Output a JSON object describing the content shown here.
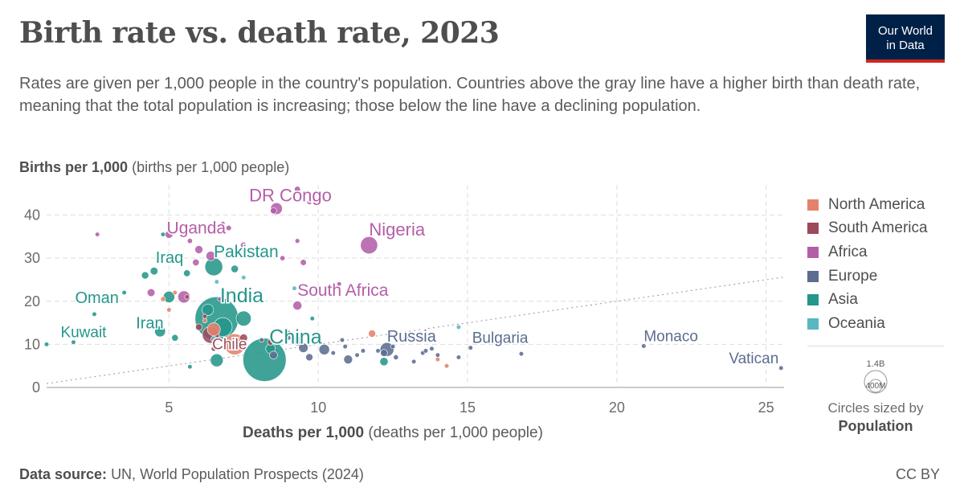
{
  "header": {
    "title": "Birth rate vs. death rate, 2023",
    "subtitle": "Rates are given per 1,000 people in the country's population. Countries above the gray line have a higher birth than death rate, meaning that the total population is increasing; those below the line have a declining population.",
    "logo_line1": "Our World",
    "logo_line2": "in Data"
  },
  "axes": {
    "y_label_bold": "Births per 1,000",
    "y_label_rest": "(births per 1,000 people)",
    "x_label_bold": "Deaths per 1,000",
    "x_label_rest": "(deaths per 1,000 people)"
  },
  "legend": {
    "items": [
      {
        "name": "North America",
        "color": "#e5826d"
      },
      {
        "name": "South America",
        "color": "#9b4b5b"
      },
      {
        "name": "Africa",
        "color": "#b45ea8"
      },
      {
        "name": "Europe",
        "color": "#5c6d8f"
      },
      {
        "name": "Asia",
        "color": "#25968a"
      },
      {
        "name": "Oceania",
        "color": "#58b7c1"
      }
    ],
    "size_big": "1.4B",
    "size_small": "400M",
    "size_caption": "Circles sized by",
    "size_caption_bold": "Population"
  },
  "footer": {
    "source_bold": "Data source:",
    "source_rest": "UN, World Population Prospects (2024)",
    "license": "CC BY"
  },
  "chart_data": {
    "type": "scatter",
    "xlim": [
      0.9,
      25.6
    ],
    "ylim": [
      0,
      47
    ],
    "x_ticks": [
      5,
      10,
      15,
      20,
      25
    ],
    "y_ticks": [
      0,
      10,
      20,
      30,
      40
    ],
    "grid": true,
    "legend_position": "right",
    "reference_line": "births = deaths",
    "size_scale": {
      "big": 1400,
      "small": 400,
      "unit": "million"
    },
    "points": [
      {
        "label": "DR Congo",
        "region": "Africa",
        "x": 8.6,
        "y": 41.5,
        "pop": 105
      },
      {
        "label": "Nigeria",
        "region": "Africa",
        "x": 11.7,
        "y": 33.0,
        "pop": 224
      },
      {
        "label": "Uganda",
        "region": "Africa",
        "x": 6.0,
        "y": 32.0,
        "pop": 49
      },
      {
        "label": "South Africa",
        "region": "Africa",
        "x": 9.3,
        "y": 19.0,
        "pop": 61
      },
      {
        "label": "Pakistan",
        "region": "Asia",
        "x": 6.5,
        "y": 28.0,
        "pop": 240
      },
      {
        "label": "Iraq",
        "region": "Asia",
        "x": 4.5,
        "y": 27.0,
        "pop": 45
      },
      {
        "label": "India",
        "region": "Asia",
        "x": 6.6,
        "y": 16.0,
        "pop": 1430
      },
      {
        "label": "China",
        "region": "Asia",
        "x": 8.2,
        "y": 6.4,
        "pop": 1410
      },
      {
        "label": "Oman",
        "region": "Asia",
        "x": 2.5,
        "y": 17.0,
        "pop": 5
      },
      {
        "label": "Iran",
        "region": "Asia",
        "x": 4.7,
        "y": 13.0,
        "pop": 89
      },
      {
        "label": "Kuwait",
        "region": "Asia",
        "x": 1.8,
        "y": 10.5,
        "pop": 4
      },
      {
        "label": "Chile",
        "region": "South America",
        "x": 6.5,
        "y": 9.0,
        "pop": 20
      },
      {
        "label": "Russia",
        "region": "Europe",
        "x": 12.3,
        "y": 8.8,
        "pop": 144
      },
      {
        "label": "Bulgaria",
        "region": "Europe",
        "x": 15.1,
        "y": 9.2,
        "pop": 6.7
      },
      {
        "label": "Monaco",
        "region": "Europe",
        "x": 20.9,
        "y": 9.6,
        "pop": 0.04
      },
      {
        "label": "Vatican",
        "region": "Europe",
        "x": 25.5,
        "y": 4.5,
        "pop": 0.001
      },
      {
        "region": "Asia",
        "x": 0.9,
        "y": 10.0,
        "pop": 5
      },
      {
        "region": "Asia",
        "x": 7.5,
        "y": 16.0,
        "pop": 170
      },
      {
        "region": "Asia",
        "x": 5.0,
        "y": 21.0,
        "pop": 100
      },
      {
        "region": "Asia",
        "x": 6.8,
        "y": 14.0,
        "pop": 270
      },
      {
        "region": "Asia",
        "x": 4.8,
        "y": 35.5,
        "pop": 10
      },
      {
        "region": "Asia",
        "x": 12.2,
        "y": 6.0,
        "pop": 52
      },
      {
        "region": "Asia",
        "x": 4.2,
        "y": 26.0,
        "pop": 40
      },
      {
        "region": "Asia",
        "x": 5.6,
        "y": 26.5,
        "pop": 34
      },
      {
        "region": "Asia",
        "x": 6.3,
        "y": 18.0,
        "pop": 99
      },
      {
        "region": "Asia",
        "x": 7.2,
        "y": 27.5,
        "pop": 42
      },
      {
        "region": "Asia",
        "x": 5.2,
        "y": 11.5,
        "pop": 33
      },
      {
        "region": "Asia",
        "x": 8.4,
        "y": 9.0,
        "pop": 70
      },
      {
        "region": "Asia",
        "x": 9.0,
        "y": 12.5,
        "pop": 30
      },
      {
        "region": "Asia",
        "x": 9.8,
        "y": 16.0,
        "pop": 5
      },
      {
        "region": "Asia",
        "x": 3.5,
        "y": 22.0,
        "pop": 3
      },
      {
        "region": "Asia",
        "x": 5.7,
        "y": 4.8,
        "pop": 9
      },
      {
        "region": "Asia",
        "x": 6.6,
        "y": 6.3,
        "pop": 125
      },
      {
        "region": "Oceania",
        "x": 6.6,
        "y": 24.5,
        "pop": 10
      },
      {
        "region": "Oceania",
        "x": 14.7,
        "y": 14.0,
        "pop": 0.3
      },
      {
        "region": "Oceania",
        "x": 6.5,
        "y": 11.2,
        "pop": 26
      },
      {
        "region": "Oceania",
        "x": 9.2,
        "y": 23.0,
        "pop": 1
      },
      {
        "region": "Oceania",
        "x": 7.5,
        "y": 25.5,
        "pop": 1
      },
      {
        "region": "North America",
        "x": 7.2,
        "y": 10.0,
        "pop": 335
      },
      {
        "region": "North America",
        "x": 6.5,
        "y": 13.5,
        "pop": 128
      },
      {
        "region": "North America",
        "x": 4.8,
        "y": 20.5,
        "pop": 18
      },
      {
        "region": "North America",
        "x": 5.0,
        "y": 18.0,
        "pop": 12
      },
      {
        "region": "North America",
        "x": 6.2,
        "y": 15.5,
        "pop": 7
      },
      {
        "region": "North America",
        "x": 11.8,
        "y": 12.5,
        "pop": 40
      },
      {
        "region": "North America",
        "x": 13.4,
        "y": 11.0,
        "pop": 11
      },
      {
        "region": "North America",
        "x": 14.0,
        "y": 6.5,
        "pop": 3
      },
      {
        "region": "North America",
        "x": 14.3,
        "y": 5.0,
        "pop": 3
      },
      {
        "region": "North America",
        "x": 5.2,
        "y": 22.0,
        "pop": 10
      },
      {
        "region": "South America",
        "x": 6.4,
        "y": 12.2,
        "pop": 216
      },
      {
        "region": "South America",
        "x": 6.0,
        "y": 14.0,
        "pop": 34
      },
      {
        "region": "South America",
        "x": 5.6,
        "y": 21.0,
        "pop": 12
      },
      {
        "region": "South America",
        "x": 7.5,
        "y": 11.5,
        "pop": 46
      },
      {
        "region": "South America",
        "x": 8.4,
        "y": 10.5,
        "pop": 28
      },
      {
        "region": "South America",
        "x": 6.2,
        "y": 16.5,
        "pop": 7
      },
      {
        "region": "Africa",
        "x": 7.0,
        "y": 37.0,
        "pop": 22
      },
      {
        "region": "Africa",
        "x": 5.7,
        "y": 34.0,
        "pop": 20
      },
      {
        "region": "Africa",
        "x": 9.3,
        "y": 46.0,
        "pop": 27
      },
      {
        "region": "Africa",
        "x": 9.7,
        "y": 43.0,
        "pop": 18
      },
      {
        "region": "Africa",
        "x": 8.5,
        "y": 41.0,
        "pop": 30
      },
      {
        "region": "Africa",
        "x": 9.3,
        "y": 34.0,
        "pop": 17
      },
      {
        "region": "Africa",
        "x": 6.4,
        "y": 30.5,
        "pop": 67
      },
      {
        "region": "Africa",
        "x": 5.9,
        "y": 29.0,
        "pop": 34
      },
      {
        "region": "Africa",
        "x": 5.5,
        "y": 21.0,
        "pop": 112
      },
      {
        "region": "Africa",
        "x": 9.5,
        "y": 29.0,
        "pop": 28
      },
      {
        "region": "Africa",
        "x": 5.0,
        "y": 35.5,
        "pop": 45
      },
      {
        "region": "Africa",
        "x": 7.5,
        "y": 33.0,
        "pop": 30
      },
      {
        "region": "Africa",
        "x": 8.8,
        "y": 30.0,
        "pop": 20
      },
      {
        "region": "Africa",
        "x": 2.6,
        "y": 35.5,
        "pop": 1
      },
      {
        "region": "Africa",
        "x": 6.8,
        "y": 38.0,
        "pop": 14
      },
      {
        "region": "Africa",
        "x": 10.7,
        "y": 24.0,
        "pop": 2
      },
      {
        "region": "Africa",
        "x": 4.4,
        "y": 22.0,
        "pop": 46
      },
      {
        "region": "Africa",
        "x": 6.7,
        "y": 20.5,
        "pop": 7
      },
      {
        "region": "Europe",
        "x": 12.2,
        "y": 8.0,
        "pop": 38
      },
      {
        "region": "Europe",
        "x": 11.0,
        "y": 6.5,
        "pop": 59
      },
      {
        "region": "Europe",
        "x": 10.2,
        "y": 8.8,
        "pop": 84
      },
      {
        "region": "Europe",
        "x": 9.5,
        "y": 9.2,
        "pop": 68
      },
      {
        "region": "Europe",
        "x": 9.3,
        "y": 10.8,
        "pop": 68
      },
      {
        "region": "Europe",
        "x": 8.5,
        "y": 7.5,
        "pop": 48
      },
      {
        "region": "Europe",
        "x": 10.5,
        "y": 8.0,
        "pop": 11
      },
      {
        "region": "Europe",
        "x": 13.5,
        "y": 8.0,
        "pop": 10
      },
      {
        "region": "Europe",
        "x": 12.6,
        "y": 7.0,
        "pop": 19
      },
      {
        "region": "Europe",
        "x": 13.2,
        "y": 6.0,
        "pop": 6.7
      },
      {
        "region": "Europe",
        "x": 14.7,
        "y": 7.0,
        "pop": 2
      },
      {
        "region": "Europe",
        "x": 13.8,
        "y": 9.0,
        "pop": 9
      },
      {
        "region": "Europe",
        "x": 11.5,
        "y": 8.5,
        "pop": 3
      },
      {
        "region": "Europe",
        "x": 10.8,
        "y": 11.0,
        "pop": 8
      },
      {
        "region": "Europe",
        "x": 9.0,
        "y": 11.5,
        "pop": 17
      },
      {
        "region": "Europe",
        "x": 8.1,
        "y": 11.0,
        "pop": 9
      },
      {
        "region": "Europe",
        "x": 10.9,
        "y": 9.5,
        "pop": 10
      },
      {
        "region": "Europe",
        "x": 12.5,
        "y": 9.5,
        "pop": 3
      },
      {
        "region": "Europe",
        "x": 14.0,
        "y": 7.5,
        "pop": 2
      },
      {
        "region": "Europe",
        "x": 13.0,
        "y": 11.5,
        "pop": 4
      },
      {
        "region": "Europe",
        "x": 11.3,
        "y": 7.5,
        "pop": 5
      },
      {
        "region": "Europe",
        "x": 9.7,
        "y": 7.0,
        "pop": 39
      },
      {
        "region": "Europe",
        "x": 12.0,
        "y": 8.5,
        "pop": 5.5
      },
      {
        "region": "Europe",
        "x": 13.6,
        "y": 8.5,
        "pop": 3.8
      },
      {
        "region": "Europe",
        "x": 16.8,
        "y": 7.8,
        "pop": 0.5
      },
      {
        "region": "Europe",
        "x": 7.2,
        "y": 9.5,
        "pop": 5
      }
    ]
  }
}
